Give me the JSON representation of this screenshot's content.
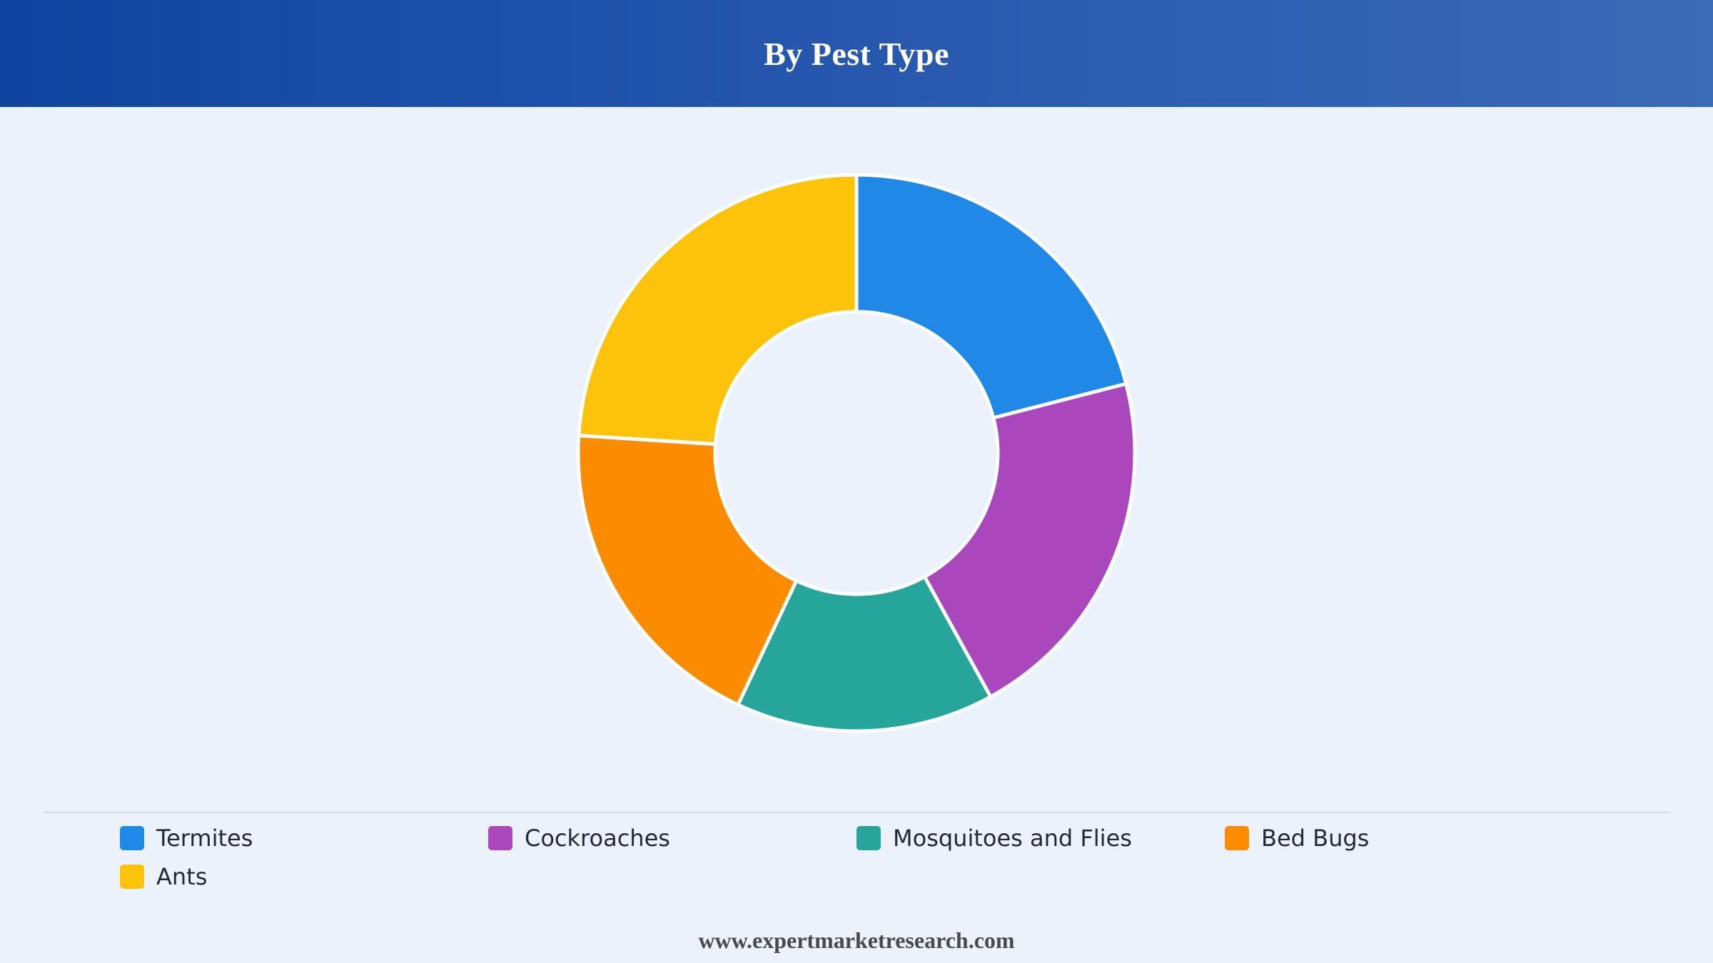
{
  "header": {
    "title": "By Pest Type"
  },
  "chart_data": {
    "type": "pie",
    "style": "donut",
    "categories": [
      "Termites",
      "Cockroaches",
      "Mosquitoes and Flies",
      "Bed Bugs",
      "Ants"
    ],
    "values": [
      21,
      21,
      15,
      19,
      24
    ],
    "unit": "%",
    "colors": [
      "#2088e6",
      "#ab47bc",
      "#26a69a",
      "#fb8c00",
      "#fdc20a"
    ],
    "legend_position": "bottom",
    "slice_border_color": "#ffffff"
  },
  "footer": {
    "source": "www.expertmarketresearch.com"
  }
}
